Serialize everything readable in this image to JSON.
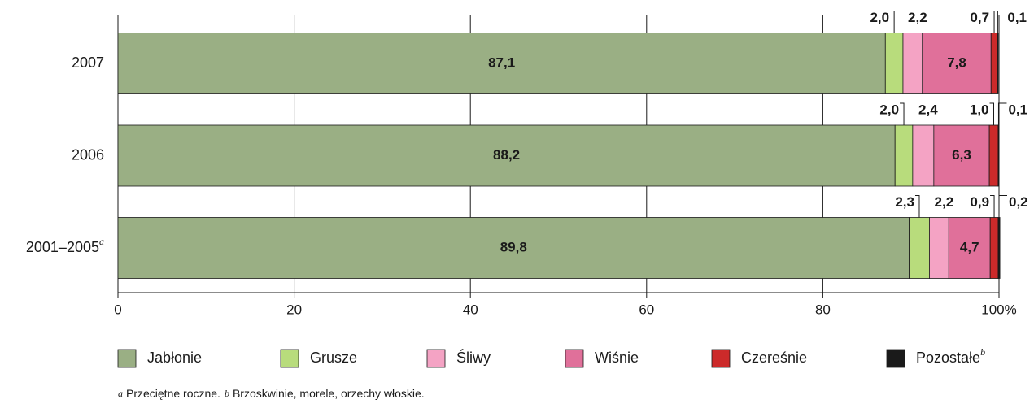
{
  "chart_data": {
    "type": "stacked_bar_horizontal",
    "categories": [
      "2007",
      "2006",
      "2001–2005"
    ],
    "category_superscripts": [
      null,
      null,
      "a"
    ],
    "series": [
      {
        "name": "Jabłonie",
        "color": "#9aaf84",
        "values": [
          87.1,
          88.2,
          89.8
        ],
        "value_labels": [
          "87,1",
          "88,2",
          "89,8"
        ]
      },
      {
        "name": "Grusze",
        "color": "#b8dc7c",
        "values": [
          2.0,
          2.0,
          2.3
        ],
        "value_labels": [
          "2,0",
          "2,0",
          "2,3"
        ]
      },
      {
        "name": "Śliwy",
        "color": "#f4a3c4",
        "values": [
          2.2,
          2.4,
          2.2
        ],
        "value_labels": [
          "2,2",
          "2,4",
          "2,2"
        ]
      },
      {
        "name": "Wiśnie",
        "color": "#e0709a",
        "values": [
          7.8,
          6.3,
          4.7
        ],
        "value_labels": [
          "7,8",
          "6,3",
          "4,7"
        ]
      },
      {
        "name": "Czereśnie",
        "color": "#cc2a2a",
        "values": [
          0.7,
          1.0,
          0.9
        ],
        "value_labels": [
          "0,7",
          "1,0",
          "0,9"
        ]
      },
      {
        "name": "Pozostałe",
        "superscript": "b",
        "color": "#1a1a1a",
        "values": [
          0.1,
          0.1,
          0.2
        ],
        "value_labels": [
          "0,1",
          "0,1",
          "0,2"
        ]
      }
    ],
    "xlim": [
      0,
      100
    ],
    "xticks": [
      0,
      20,
      40,
      60,
      80,
      {
        "value": 100,
        "label": "100%"
      }
    ],
    "grid": true,
    "legend": "bottom",
    "footnotes": [
      {
        "mark": "a",
        "text": "Przeciętne roczne."
      },
      {
        "mark": "b",
        "text": "Brzoskwinie, morele, orzechy włoskie."
      }
    ]
  }
}
